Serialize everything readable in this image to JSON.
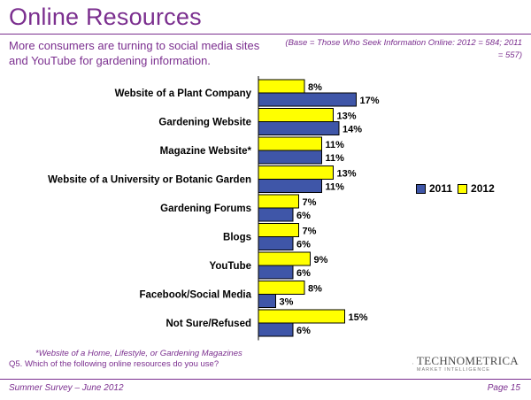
{
  "title": "Online Resources",
  "subtitle": "More consumers are turning to social media sites and YouTube for gardening information.",
  "base_note": "(Base = Those Who Seek Information Online: 2012 = 584; 2011 = 557)",
  "chart_data": {
    "type": "bar",
    "orientation": "horizontal",
    "categories": [
      "Website of a Plant Company",
      "Gardening Website",
      "Magazine Website*",
      "Website of a University or Botanic Garden",
      "Gardening Forums",
      "Blogs",
      "YouTube",
      "Facebook/Social Media",
      "Not Sure/Refused"
    ],
    "series": [
      {
        "name": "2012",
        "color": "#FFFF00",
        "values": [
          8,
          13,
          11,
          13,
          7,
          7,
          9,
          8,
          15
        ]
      },
      {
        "name": "2011",
        "color": "#3F56A8",
        "values": [
          17,
          14,
          11,
          11,
          6,
          6,
          6,
          3,
          6
        ]
      }
    ],
    "value_suffix": "%",
    "xlim": [
      0,
      20
    ],
    "legend_position": "right",
    "legend_order": [
      "2011",
      "2012"
    ],
    "grid": false
  },
  "footnote": "*Website of a Home, Lifestyle, or Gardening Magazines",
  "question": "Q5.  Which of the following online resources do you use?",
  "logo": {
    "name": "TECHNOMETRICA",
    "tagline": "MARKET INTELLIGENCE"
  },
  "footer": {
    "left": "Summer Survey – June 2012",
    "right": "Page 15"
  }
}
